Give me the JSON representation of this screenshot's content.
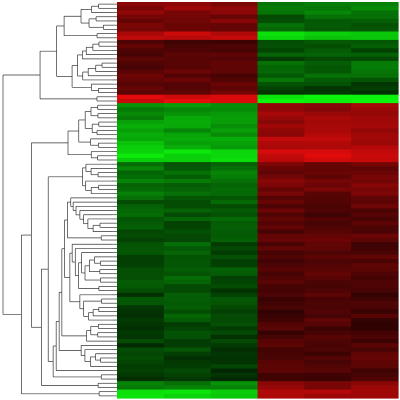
{
  "chart_data": {
    "type": "heatmap",
    "title": "",
    "xlabel": "",
    "ylabel": "",
    "columns": [
      "",
      "",
      "",
      "",
      "",
      ""
    ],
    "color_scale": {
      "low": "#00ff00",
      "mid": "#000000",
      "high": "#ff0000",
      "range": [
        -1,
        1
      ]
    },
    "dendrogram": "rows",
    "row_blocks": [
      {
        "rows": 3,
        "values": [
          0.55,
          0.55,
          0.55,
          -0.5,
          -0.5,
          -0.5
        ]
      },
      {
        "rows": 4,
        "values": [
          0.45,
          0.45,
          0.45,
          -0.35,
          -0.35,
          -0.35
        ]
      },
      {
        "rows": 2,
        "values": [
          0.75,
          0.75,
          0.75,
          -0.85,
          -0.85,
          -0.85
        ]
      },
      {
        "rows": 5,
        "values": [
          0.3,
          0.3,
          0.3,
          -0.3,
          -0.3,
          -0.3
        ]
      },
      {
        "rows": 5,
        "values": [
          0.35,
          0.35,
          0.35,
          -0.4,
          -0.4,
          -0.4
        ]
      },
      {
        "rows": 3,
        "values": [
          0.4,
          0.4,
          0.4,
          -0.25,
          -0.25,
          -0.25
        ]
      },
      {
        "rows": 2,
        "values": [
          0.9,
          0.9,
          0.9,
          -1.0,
          -1.0,
          -1.0
        ]
      },
      {
        "rows": 4,
        "values": [
          -0.55,
          -0.6,
          -0.6,
          0.6,
          0.6,
          0.6
        ]
      },
      {
        "rows": 4,
        "values": [
          -0.65,
          -0.6,
          -0.55,
          0.55,
          0.65,
          0.6
        ]
      },
      {
        "rows": 3,
        "values": [
          -0.75,
          -0.7,
          -0.7,
          0.7,
          0.75,
          0.7
        ]
      },
      {
        "rows": 3,
        "values": [
          -0.9,
          -0.9,
          -0.9,
          0.8,
          0.85,
          0.8
        ]
      },
      {
        "rows": 8,
        "values": [
          -0.45,
          -0.4,
          -0.45,
          0.45,
          0.4,
          0.45
        ]
      },
      {
        "rows": 10,
        "values": [
          -0.35,
          -0.3,
          -0.35,
          0.35,
          0.3,
          0.35
        ]
      },
      {
        "rows": 12,
        "values": [
          -0.3,
          -0.35,
          -0.3,
          0.3,
          0.35,
          0.3
        ]
      },
      {
        "rows": 12,
        "values": [
          -0.25,
          -0.3,
          -0.25,
          0.25,
          0.3,
          0.25
        ]
      },
      {
        "rows": 10,
        "values": [
          -0.2,
          -0.25,
          -0.2,
          0.3,
          0.25,
          0.3
        ]
      },
      {
        "rows": 2,
        "values": [
          -0.55,
          -0.5,
          -0.55,
          0.6,
          0.55,
          0.6
        ]
      },
      {
        "rows": 2,
        "values": [
          -0.85,
          -0.85,
          -0.85,
          0.7,
          0.7,
          0.7
        ]
      }
    ]
  }
}
